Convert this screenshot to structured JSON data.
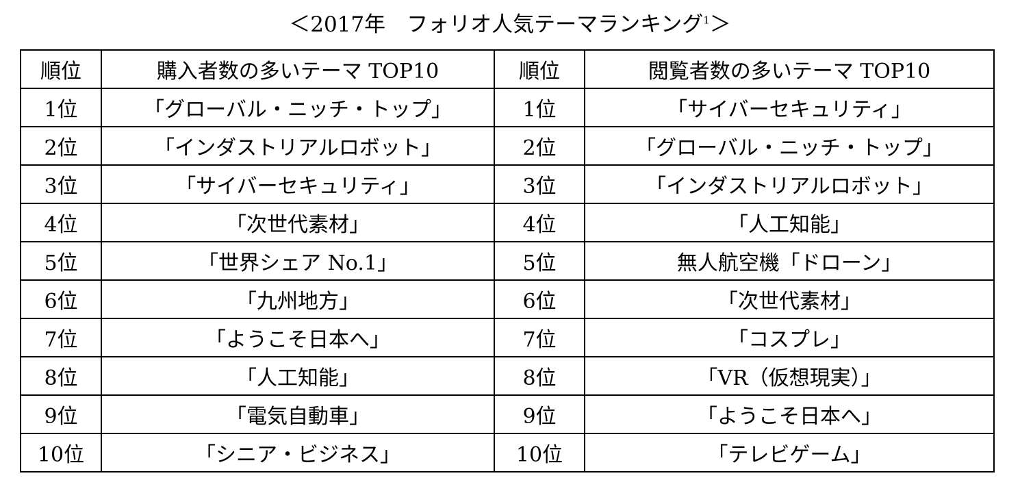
{
  "title": {
    "text": "＜2017年　フォリオ人気テーマランキング",
    "footnote_mark": "1",
    "closing": "＞"
  },
  "table": {
    "headers": {
      "rank_left": "順位",
      "purchase_top10": "購入者数の多いテーマ TOP10",
      "rank_right": "順位",
      "views_top10": "閲覧者数の多いテーマ TOP10"
    },
    "rows": [
      {
        "rank_left": "1位",
        "purchase": "「グローバル・ニッチ・トップ」",
        "rank_right": "1位",
        "views": "「サイバーセキュリティ」"
      },
      {
        "rank_left": "2位",
        "purchase": "「インダストリアルロボット」",
        "rank_right": "2位",
        "views": "「グローバル・ニッチ・トップ」"
      },
      {
        "rank_left": "3位",
        "purchase": "「サイバーセキュリティ」",
        "rank_right": "3位",
        "views": "「インダストリアルロボット」"
      },
      {
        "rank_left": "4位",
        "purchase": "「次世代素材」",
        "rank_right": "4位",
        "views": "「人工知能」"
      },
      {
        "rank_left": "5位",
        "purchase": "「世界シェア No.1」",
        "rank_right": "5位",
        "views": "無人航空機「ドローン」"
      },
      {
        "rank_left": "6位",
        "purchase": "「九州地方」",
        "rank_right": "6位",
        "views": "「次世代素材」"
      },
      {
        "rank_left": "7位",
        "purchase": "「ようこそ日本へ」",
        "rank_right": "7位",
        "views": "「コスプレ」"
      },
      {
        "rank_left": "8位",
        "purchase": "「人工知能」",
        "rank_right": "8位",
        "views": "「VR（仮想現実）」"
      },
      {
        "rank_left": "9位",
        "purchase": "「電気自動車」",
        "rank_right": "9位",
        "views": "「ようこそ日本へ」"
      },
      {
        "rank_left": "10位",
        "purchase": "「シニア・ビジネス」",
        "rank_right": "10位",
        "views": "「テレビゲーム」"
      }
    ]
  }
}
